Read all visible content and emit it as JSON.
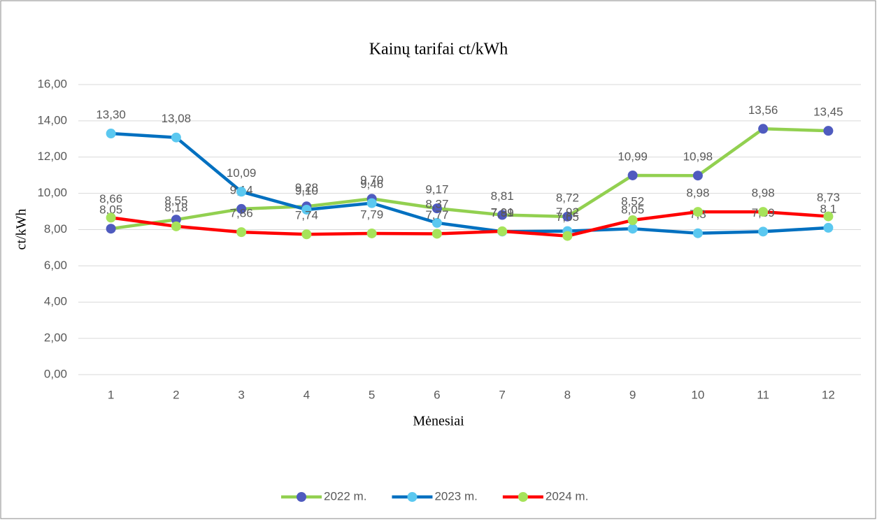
{
  "chart_data": {
    "type": "line",
    "title": "Kainų tarifai ct/kWh",
    "x_label": "Mėnesiai",
    "y_label": "ct/kWh",
    "categories": [
      "1",
      "2",
      "3",
      "4",
      "5",
      "6",
      "7",
      "8",
      "9",
      "10",
      "11",
      "12"
    ],
    "series": [
      {
        "name": "2022 m.",
        "color": "#92d050",
        "marker_color": "#4f5bbf",
        "values": [
          8.05,
          8.55,
          9.14,
          9.28,
          9.7,
          9.17,
          8.81,
          8.72,
          10.99,
          10.98,
          13.56,
          13.45
        ],
        "value_labels": [
          "8,05",
          "8,55",
          "9,14",
          "9,28",
          "9,70",
          "9,17",
          "8,81",
          "8,72",
          "10,99",
          "10,98",
          "13,56",
          "13,45"
        ]
      },
      {
        "name": "2023 m.",
        "color": "#0070c0",
        "marker_color": "#5bc8f0",
        "values": [
          13.3,
          13.08,
          10.09,
          9.1,
          9.46,
          8.37,
          7.89,
          7.92,
          8.05,
          7.8,
          7.89,
          8.1
        ],
        "value_labels": [
          "13,30",
          "13,08",
          "10,09",
          "9,10",
          "9,46",
          "8,37",
          "7,89",
          "7,92",
          "8,05",
          "7,8",
          "7,89",
          "8,1"
        ]
      },
      {
        "name": "2024 m.",
        "color": "#ff0000",
        "marker_color": "#a6e35a",
        "values": [
          8.66,
          8.18,
          7.86,
          7.74,
          7.79,
          7.77,
          7.91,
          7.65,
          8.52,
          8.98,
          8.98,
          8.73
        ],
        "value_labels": [
          "8,66",
          "8,18",
          "7,86",
          "7,74",
          "7,79",
          "7,77",
          "7,91",
          "7,65",
          "8,52",
          "8,98",
          "8,98",
          "8,73"
        ]
      }
    ],
    "ylim": [
      0,
      16
    ],
    "yticks": [
      {
        "value": 0,
        "label": "0,00"
      },
      {
        "value": 2,
        "label": "2,00"
      },
      {
        "value": 4,
        "label": "4,00"
      },
      {
        "value": 6,
        "label": "6,00"
      },
      {
        "value": 8,
        "label": "8,00"
      },
      {
        "value": 10,
        "label": "10,00"
      },
      {
        "value": 12,
        "label": "12,00"
      },
      {
        "value": 14,
        "label": "14,00"
      },
      {
        "value": 16,
        "label": "16,00"
      }
    ],
    "grid": true,
    "legend": "bottom"
  }
}
